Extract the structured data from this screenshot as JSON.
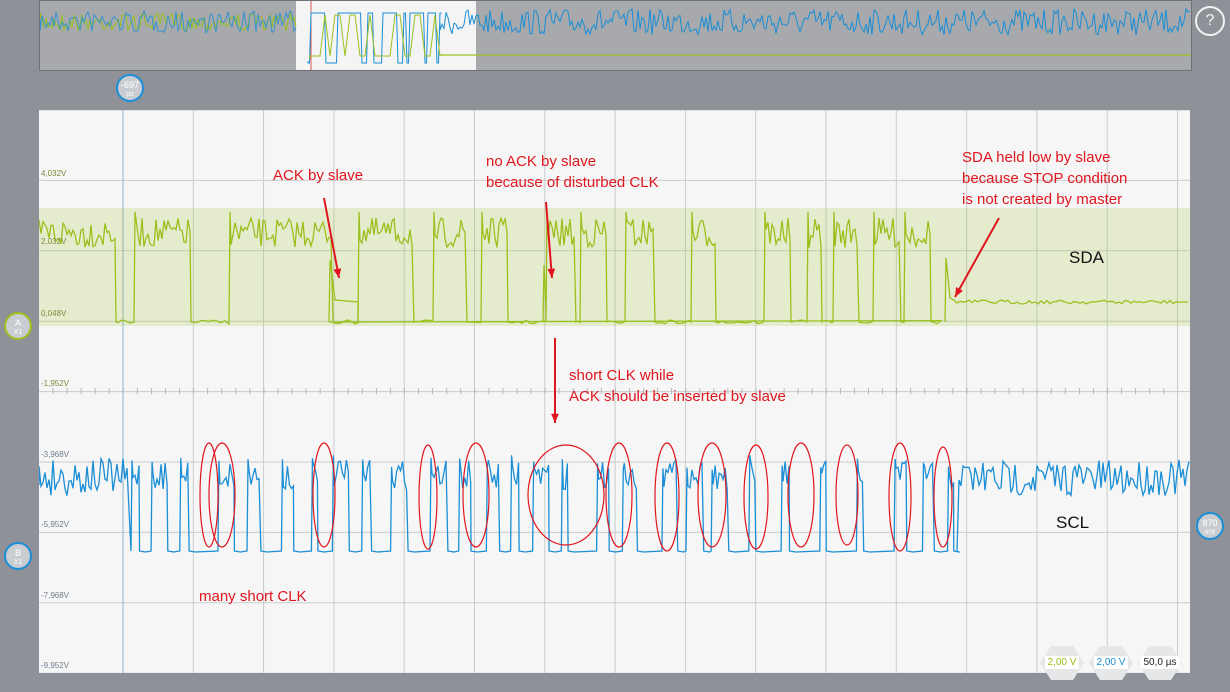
{
  "toolbar": {
    "help_label": "?"
  },
  "time_marker": {
    "value": "-697",
    "unit": "µs"
  },
  "channels": {
    "a": {
      "letter": "A",
      "sub": "X1",
      "color": "#9bc01e",
      "name": "SDA"
    },
    "b": {
      "letter": "B",
      "sub": "X1",
      "color": "#1a8ed6",
      "name": "SCL"
    }
  },
  "trigger": {
    "value": "870",
    "unit": "mV"
  },
  "levels": [
    "4,032V",
    "2,032V",
    "0,048V",
    "-1,952V",
    "-3,968V",
    "-5,952V",
    "-7,968V",
    "-9,952V"
  ],
  "annotations": {
    "ack": "ACK by slave",
    "no_ack": "no ACK by slave\nbecause of disturbed CLK",
    "sda_low": "SDA held low by slave\nbecause STOP condition\nis not created by master",
    "short_clk": "short CLK while\nACK should be inserted by slave",
    "many_short": "many short CLK"
  },
  "scale_buttons": {
    "ch_a": "2,00 V",
    "ch_b": "2,00 V",
    "time": "50,0 µs"
  },
  "colors": {
    "sda": "#9bc01e",
    "scl": "#1a8ed6",
    "annotation": "#e0151d"
  }
}
